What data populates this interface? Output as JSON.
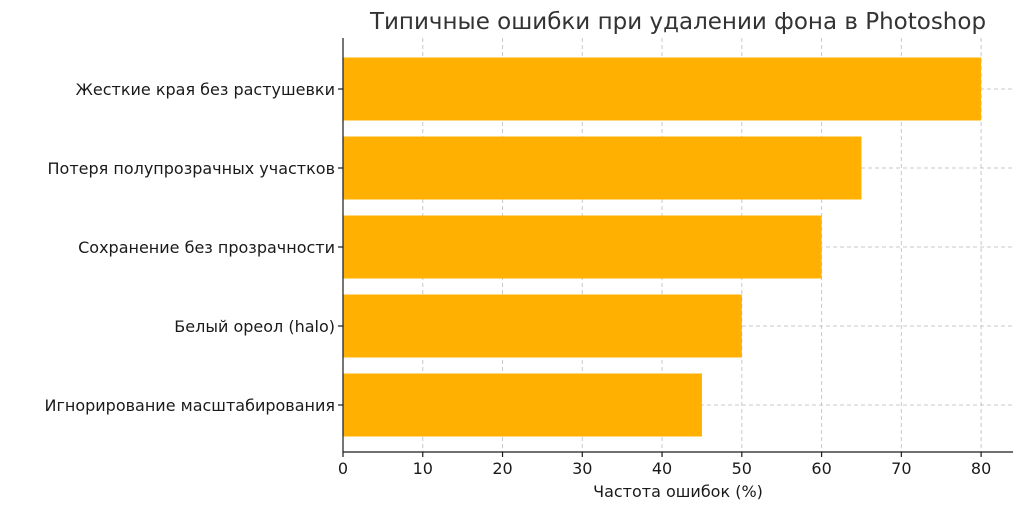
{
  "chart_data": {
    "type": "bar",
    "orientation": "horizontal",
    "title": "Типичные ошибки при удалении фона в Photoshop",
    "xlabel": "Частота ошибок (%)",
    "ylabel": "",
    "categories": [
      "Жесткие края без растушевки",
      "Потеря полупрозрачных участков",
      "Сохранение без прозрачности",
      "Белый ореол (halo)",
      "Игнорирование масштабирования"
    ],
    "values": [
      80,
      65,
      60,
      50,
      45
    ],
    "xlim": [
      0,
      84
    ],
    "xticks": [
      0,
      10,
      20,
      30,
      40,
      50,
      60,
      70,
      80
    ],
    "grid": true,
    "bar_color": "#FFB000"
  }
}
